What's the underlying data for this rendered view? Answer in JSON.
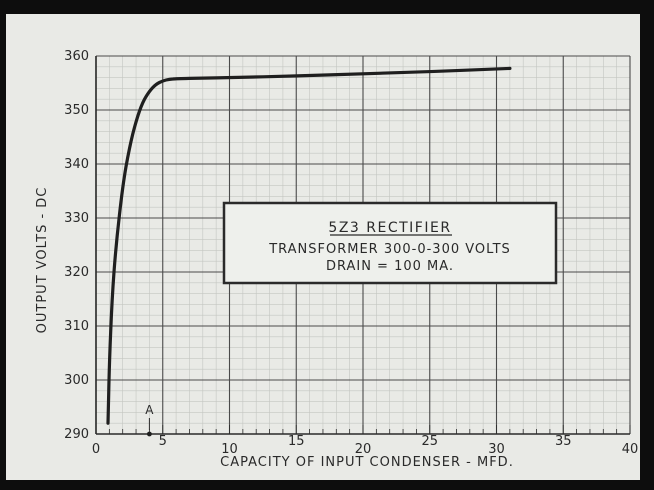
{
  "chart_data": {
    "type": "line",
    "title": "",
    "xlabel": "CAPACITY OF INPUT CONDENSER - MFD.",
    "ylabel": "OUTPUT VOLTS - DC",
    "xlim": [
      0,
      40
    ],
    "ylim": [
      290,
      360
    ],
    "x_ticks": [
      0,
      5,
      10,
      15,
      20,
      25,
      30,
      35,
      40
    ],
    "x_tick_labels": [
      "0",
      "5",
      "10",
      "15",
      "20",
      "25",
      "30",
      "35",
      "40"
    ],
    "y_ticks": [
      290,
      300,
      310,
      320,
      330,
      340,
      350,
      360
    ],
    "y_tick_labels": [
      "290",
      "300",
      "310",
      "320",
      "330",
      "340",
      "350",
      "360"
    ],
    "grid": true,
    "series": [
      {
        "color": "#1f1f1f",
        "x": [
          0.9,
          1.0,
          1.2,
          1.5,
          2.0,
          2.5,
          3.0,
          3.5,
          4.0,
          4.5,
          5.0,
          5.5,
          6.0,
          8.0,
          10.0,
          15.0,
          20.0,
          25.0,
          30.0,
          31.0
        ],
        "y": [
          292,
          303,
          315,
          325,
          336,
          343,
          348,
          351.5,
          353.5,
          354.8,
          355.4,
          355.7,
          355.8,
          355.9,
          356.0,
          356.3,
          356.7,
          357.1,
          357.6,
          357.7
        ]
      }
    ],
    "marker": {
      "label": "A",
      "x": 4
    },
    "annotation": {
      "title": "5Z3 RECTIFIER",
      "line1": "TRANSFORMER 300-0-300 VOLTS",
      "line2": "DRAIN = 100 MA."
    }
  }
}
